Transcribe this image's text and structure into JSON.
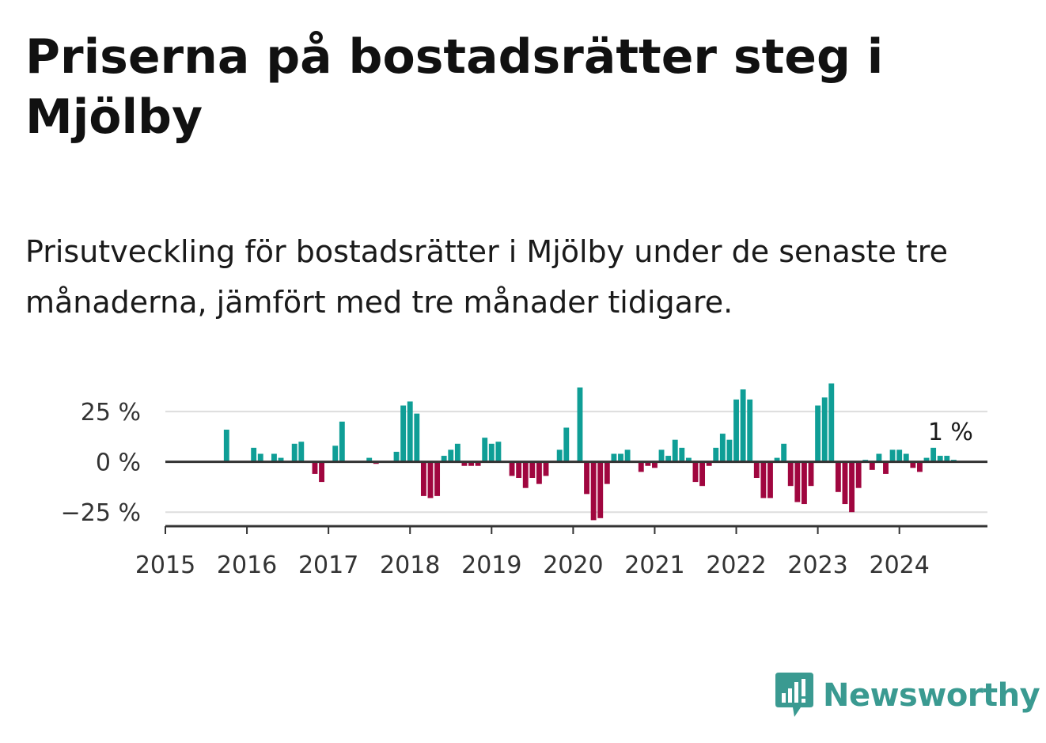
{
  "title": "Priserna på bostadsrätter steg i Mjölby",
  "subtitle": "Prisutveckling för bostadsrätter i Mjölby under de senaste tre månaderna, jämfört med tre månader tidigare.",
  "brand": "Newsworthy",
  "colors": {
    "positive": "#0f9e96",
    "negative": "#a0063f",
    "grid": "#dddddd",
    "axis": "#333333",
    "brand": "#3a9a91"
  },
  "chart_data": {
    "type": "bar",
    "ylim": [
      -32,
      40
    ],
    "yticks": [
      25,
      0,
      -25
    ],
    "ytick_labels": [
      "25 %",
      "0 %",
      "−25 %"
    ],
    "xticks": [
      2015,
      2016,
      2017,
      2018,
      2019,
      2020,
      2021,
      2022,
      2023,
      2024
    ],
    "xlim": [
      2015.0,
      2025.08
    ],
    "grid": true,
    "annotation": "1 %",
    "x_start": 2015.75,
    "x_step_months": 1,
    "values": [
      16,
      0,
      0,
      0,
      7,
      4,
      0,
      4,
      2,
      0,
      9,
      10,
      0,
      -6,
      -10,
      0,
      8,
      20,
      0,
      0,
      0,
      2,
      -1,
      0,
      0,
      5,
      28,
      30,
      24,
      -17,
      -18,
      -17,
      3,
      6,
      9,
      -2,
      -2,
      -2,
      12,
      9,
      10,
      0,
      -7,
      -8,
      -13,
      -8,
      -11,
      -7,
      0,
      6,
      17,
      0,
      37,
      -16,
      -29,
      -28,
      -11,
      4,
      4,
      6,
      0,
      -5,
      -2,
      -3,
      6,
      3,
      11,
      7,
      2,
      -10,
      -12,
      -2,
      7,
      14,
      11,
      31,
      36,
      31,
      -8,
      -18,
      -18,
      2,
      9,
      -12,
      -20,
      -21,
      -12,
      28,
      32,
      39,
      -15,
      -21,
      -25,
      -13,
      1,
      -4,
      4,
      -6,
      6,
      6,
      4,
      -3,
      -5,
      2,
      7,
      3,
      3,
      1
    ]
  }
}
